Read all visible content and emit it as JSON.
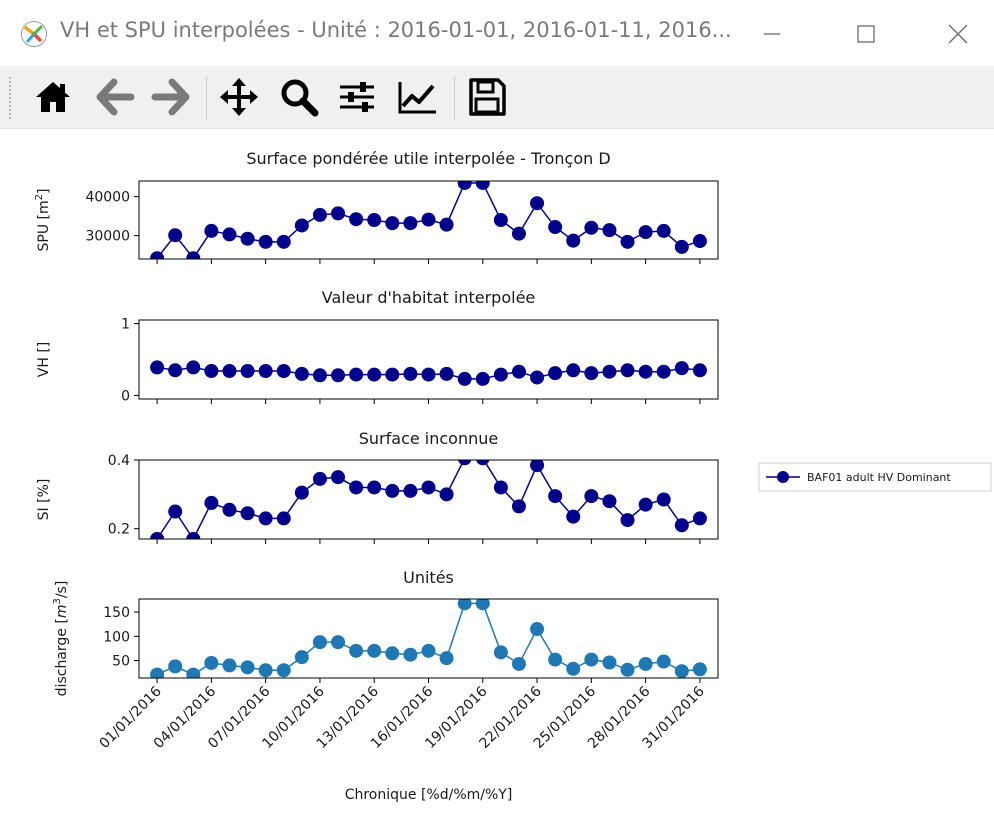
{
  "window": {
    "title": "VH et SPU interpolées - Unité : 2016-01-01, 2016-01-11, 2016...",
    "controls": {
      "minimize": "minimize-icon",
      "maximize": "maximize-icon",
      "close": "close-icon"
    }
  },
  "toolbar": {
    "buttons": [
      {
        "name": "home-button",
        "icon": "home-icon"
      },
      {
        "name": "back-button",
        "icon": "arrow-left-icon"
      },
      {
        "name": "forward-button",
        "icon": "arrow-right-icon"
      },
      {
        "name": "pan-button",
        "icon": "move-icon"
      },
      {
        "name": "zoom-button",
        "icon": "magnifier-icon"
      },
      {
        "name": "subplots-button",
        "icon": "sliders-icon"
      },
      {
        "name": "edit-axes-button",
        "icon": "line-chart-icon"
      },
      {
        "name": "save-button",
        "icon": "floppy-disk-icon"
      }
    ]
  },
  "colors": {
    "dark_series": "#00008b",
    "discharge_series": "#1f77b4"
  },
  "chart_data": [
    {
      "type": "line",
      "title": "Surface pondérée utile interpolée - Tronçon D",
      "ylabel": "SPU [m",
      "ylabel_sup": "2",
      "ylabel_end": "]",
      "ylim": [
        24000,
        44000
      ],
      "yticks": [
        30000,
        40000
      ],
      "ytick_labels": [
        "30000",
        "40000"
      ],
      "x": [
        1,
        2,
        3,
        4,
        5,
        6,
        7,
        8,
        9,
        10,
        11,
        12,
        13,
        14,
        15,
        16,
        17,
        18,
        19,
        20,
        21,
        22,
        23,
        24,
        25,
        26,
        27,
        28,
        29,
        30,
        31
      ],
      "series": [
        {
          "name": "BAF01 adult HV Dominant",
          "color": "#00008b",
          "values": [
            24200,
            30100,
            24200,
            31200,
            30300,
            29200,
            28400,
            28400,
            32600,
            35300,
            35700,
            34200,
            34000,
            33200,
            33200,
            34100,
            32800,
            43500,
            43500,
            34000,
            30500,
            38300,
            32200,
            28700,
            32000,
            31400,
            28400,
            30900,
            31200,
            27100,
            28600
          ]
        }
      ]
    },
    {
      "type": "line",
      "title": "Valeur d'habitat interpolée",
      "ylabel": "VH []",
      "ylim": [
        -0.05,
        1.05
      ],
      "yticks": [
        0,
        1
      ],
      "ytick_labels": [
        "0",
        "1"
      ],
      "x": [
        1,
        2,
        3,
        4,
        5,
        6,
        7,
        8,
        9,
        10,
        11,
        12,
        13,
        14,
        15,
        16,
        17,
        18,
        19,
        20,
        21,
        22,
        23,
        24,
        25,
        26,
        27,
        28,
        29,
        30,
        31
      ],
      "series": [
        {
          "name": "BAF01 adult HV Dominant",
          "color": "#00008b",
          "values": [
            0.39,
            0.35,
            0.39,
            0.34,
            0.34,
            0.34,
            0.34,
            0.34,
            0.3,
            0.28,
            0.28,
            0.29,
            0.29,
            0.29,
            0.3,
            0.29,
            0.3,
            0.23,
            0.23,
            0.29,
            0.33,
            0.25,
            0.31,
            0.35,
            0.31,
            0.33,
            0.35,
            0.33,
            0.33,
            0.38,
            0.35
          ]
        }
      ]
    },
    {
      "type": "line",
      "title": "Surface inconnue",
      "ylabel": "SI [%]",
      "ylim": [
        0.17,
        0.4
      ],
      "yticks": [
        0.2,
        0.4
      ],
      "ytick_labels": [
        "0.2",
        "0.4"
      ],
      "x": [
        1,
        2,
        3,
        4,
        5,
        6,
        7,
        8,
        9,
        10,
        11,
        12,
        13,
        14,
        15,
        16,
        17,
        18,
        19,
        20,
        21,
        22,
        23,
        24,
        25,
        26,
        27,
        28,
        29,
        30,
        31
      ],
      "series": [
        {
          "name": "BAF01 adult HV Dominant",
          "color": "#00008b",
          "values": [
            0.17,
            0.25,
            0.17,
            0.275,
            0.255,
            0.245,
            0.23,
            0.23,
            0.305,
            0.345,
            0.35,
            0.32,
            0.32,
            0.31,
            0.31,
            0.32,
            0.3,
            0.405,
            0.405,
            0.32,
            0.265,
            0.385,
            0.295,
            0.235,
            0.295,
            0.28,
            0.225,
            0.27,
            0.285,
            0.21,
            0.23
          ]
        }
      ]
    },
    {
      "type": "line",
      "title": "Unités",
      "ylabel": "discharge [",
      "ylabel_italic": "m",
      "ylabel_sup": "3",
      "ylabel_end": "/s]",
      "xlabel": "Chronique [%d/%m/%Y]",
      "ylim": [
        14,
        177
      ],
      "yticks": [
        50,
        100,
        150
      ],
      "ytick_labels": [
        "50",
        "100",
        "150"
      ],
      "x": [
        1,
        2,
        3,
        4,
        5,
        6,
        7,
        8,
        9,
        10,
        11,
        12,
        13,
        14,
        15,
        16,
        17,
        18,
        19,
        20,
        21,
        22,
        23,
        24,
        25,
        26,
        27,
        28,
        29,
        30,
        31
      ],
      "xtick_positions": [
        1,
        4,
        7,
        10,
        13,
        16,
        19,
        22,
        25,
        28,
        31
      ],
      "xtick_labels": [
        "01/01/2016",
        "04/01/2016",
        "07/01/2016",
        "10/01/2016",
        "13/01/2016",
        "16/01/2016",
        "19/01/2016",
        "22/01/2016",
        "25/01/2016",
        "28/01/2016",
        "31/01/2016"
      ],
      "series": [
        {
          "name": "",
          "color": "#1f77b4",
          "values": [
            21,
            38,
            21,
            45,
            40,
            36,
            30,
            30,
            57,
            88,
            88,
            70,
            70,
            65,
            62,
            70,
            55,
            168,
            168,
            67,
            43,
            115,
            52,
            33,
            52,
            46,
            31,
            43,
            48,
            28,
            32
          ]
        }
      ]
    }
  ],
  "legend": {
    "label": "BAF01 adult HV Dominant"
  }
}
